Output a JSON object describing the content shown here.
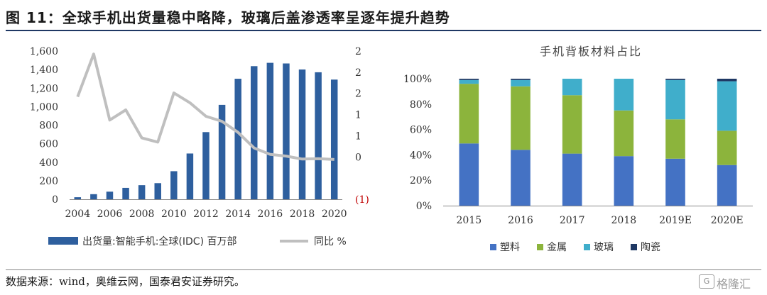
{
  "header": {
    "title": "图 11：全球手机出货量稳中略降，玻璃后盖渗透率呈逐年提升趋势"
  },
  "footer": {
    "source": "数据来源：wind，奥维云网，国泰君安证券研究。"
  },
  "watermark": {
    "icon_label": "G",
    "text": "格隆汇"
  },
  "chart_data": [
    {
      "type": "bar+line",
      "title": "",
      "x": [
        "2004",
        "2005",
        "2006",
        "2007",
        "2008",
        "2009",
        "2010",
        "2011",
        "2012",
        "2013",
        "2014",
        "2015",
        "2016",
        "2017",
        "2018",
        "2019",
        "2020"
      ],
      "xticks": [
        "2004",
        "2006",
        "2008",
        "2010",
        "2012",
        "2014",
        "2016",
        "2018",
        "2020"
      ],
      "series": [
        {
          "name": "出货量:智能手机:全球(IDC) 百万部",
          "kind": "bar",
          "axis": "left",
          "color": "#2e5f9e",
          "values": [
            22,
            55,
            82,
            123,
            152,
            174,
            303,
            494,
            725,
            1019,
            1301,
            1437,
            1473,
            1466,
            1401,
            1371,
            1292
          ]
        },
        {
          "name": "同比 %",
          "kind": "line",
          "axis": "right",
          "color": "#bfbfbf",
          "values": [
            1.42,
            2.43,
            0.87,
            1.11,
            0.45,
            0.35,
            1.51,
            1.28,
            0.96,
            0.84,
            0.58,
            0.21,
            0.06,
            0.02,
            -0.05,
            -0.04,
            -0.06
          ]
        }
      ],
      "ylim_left": [
        0,
        1600
      ],
      "yticks_left": [
        "0",
        "200",
        "400",
        "600",
        "800",
        "1,000",
        "1,200",
        "1,400",
        "1,600"
      ],
      "ylim_right": [
        -1,
        2.5
      ],
      "yticks_right": [
        "(1)",
        "0",
        "1",
        "1",
        "2",
        "2",
        "2"
      ],
      "legend": {
        "position": "bottom",
        "bar_label": "出货量:智能手机:全球(IDC) 百万部",
        "line_label": "同比 %"
      },
      "grid": false
    },
    {
      "type": "bar",
      "stacked": true,
      "title": "手机背板材料占比",
      "categories": [
        "2015",
        "2016",
        "2017",
        "2018",
        "2019E",
        "2020E"
      ],
      "series": [
        {
          "name": "塑料",
          "color": "#4472c4",
          "values": [
            49,
            44,
            41,
            39,
            37,
            32
          ]
        },
        {
          "name": "金属",
          "color": "#8cb43c",
          "values": [
            47,
            50,
            46,
            36,
            31,
            27
          ]
        },
        {
          "name": "玻璃",
          "color": "#40aecb",
          "values": [
            3,
            5,
            13,
            25,
            31,
            39
          ]
        },
        {
          "name": "陶瓷",
          "color": "#1f3864",
          "values": [
            1,
            1,
            0,
            0,
            1,
            2
          ]
        }
      ],
      "ylim": [
        0,
        100
      ],
      "yticks": [
        "0%",
        "20%",
        "40%",
        "60%",
        "80%",
        "100%"
      ],
      "legend": {
        "position": "bottom"
      },
      "grid": false
    }
  ]
}
